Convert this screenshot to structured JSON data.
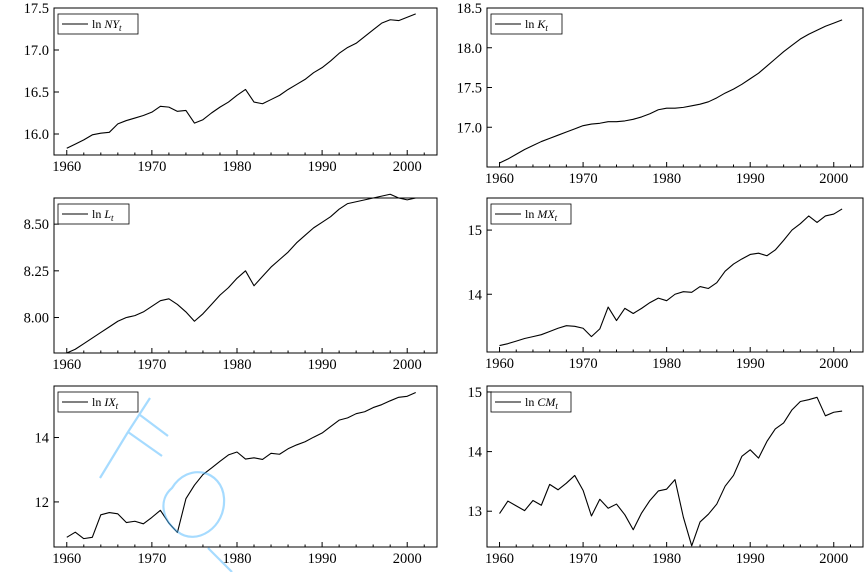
{
  "chart_data": [
    {
      "type": "line",
      "legend_prefix": "ln",
      "legend_var": "NY",
      "legend_sub": "t",
      "legend_position": "top-left",
      "grid": false,
      "x_ticks": [
        "1960",
        "1970",
        "1980",
        "1990",
        "2000"
      ],
      "y_ticks": [
        "16.0",
        "16.5",
        "17.0",
        "17.5"
      ],
      "xlim": [
        1958.5,
        2003.5
      ],
      "ylim": [
        15.75,
        17.5
      ],
      "x": [
        1960,
        1961,
        1962,
        1963,
        1964,
        1965,
        1966,
        1967,
        1968,
        1969,
        1970,
        1971,
        1972,
        1973,
        1974,
        1975,
        1976,
        1977,
        1978,
        1979,
        1980,
        1981,
        1982,
        1983,
        1984,
        1985,
        1986,
        1987,
        1988,
        1989,
        1990,
        1991,
        1992,
        1993,
        1994,
        1995,
        1996,
        1997,
        1998,
        1999,
        2000,
        2001
      ],
      "y": [
        15.83,
        15.88,
        15.93,
        15.99,
        16.01,
        16.02,
        16.12,
        16.16,
        16.19,
        16.22,
        16.26,
        16.33,
        16.32,
        16.27,
        16.28,
        16.13,
        16.17,
        16.25,
        16.32,
        16.38,
        16.46,
        16.53,
        16.38,
        16.36,
        16.41,
        16.46,
        16.53,
        16.59,
        16.65,
        16.73,
        16.79,
        16.87,
        16.96,
        17.03,
        17.08,
        17.16,
        17.24,
        17.32,
        17.36,
        17.35,
        17.39,
        17.43
      ]
    },
    {
      "type": "line",
      "legend_prefix": "ln",
      "legend_var": "K",
      "legend_sub": "t",
      "legend_position": "top-left",
      "grid": false,
      "x_ticks": [
        "1960",
        "1970",
        "1980",
        "1990",
        "2000"
      ],
      "y_ticks": [
        "17.0",
        "17.5",
        "18.0",
        "18.5"
      ],
      "xlim": [
        1958.5,
        2003.5
      ],
      "ylim": [
        16.5,
        18.5
      ],
      "x": [
        1960,
        1961,
        1962,
        1963,
        1964,
        1965,
        1966,
        1967,
        1968,
        1969,
        1970,
        1971,
        1972,
        1973,
        1974,
        1975,
        1976,
        1977,
        1978,
        1979,
        1980,
        1981,
        1982,
        1983,
        1984,
        1985,
        1986,
        1987,
        1988,
        1989,
        1990,
        1991,
        1992,
        1993,
        1994,
        1995,
        1996,
        1997,
        1998,
        1999,
        2000,
        2001
      ],
      "y": [
        16.55,
        16.6,
        16.66,
        16.72,
        16.77,
        16.82,
        16.86,
        16.9,
        16.94,
        16.98,
        17.02,
        17.04,
        17.05,
        17.07,
        17.07,
        17.08,
        17.1,
        17.13,
        17.17,
        17.22,
        17.24,
        17.24,
        17.25,
        17.27,
        17.29,
        17.32,
        17.37,
        17.43,
        17.48,
        17.54,
        17.61,
        17.68,
        17.77,
        17.86,
        17.95,
        18.03,
        18.11,
        18.17,
        18.22,
        18.27,
        18.31,
        18.35
      ]
    },
    {
      "type": "line",
      "legend_prefix": "ln",
      "legend_var": "L",
      "legend_sub": "t",
      "legend_position": "top-left",
      "grid": false,
      "x_ticks": [
        "1960",
        "1970",
        "1980",
        "1990",
        "2000"
      ],
      "y_ticks": [
        "8.00",
        "8.25",
        "8.50"
      ],
      "xlim": [
        1958.5,
        2003.5
      ],
      "ylim": [
        7.81,
        8.64
      ],
      "x": [
        1960,
        1961,
        1962,
        1963,
        1964,
        1965,
        1966,
        1967,
        1968,
        1969,
        1970,
        1971,
        1972,
        1973,
        1974,
        1975,
        1976,
        1977,
        1978,
        1979,
        1980,
        1981,
        1982,
        1983,
        1984,
        1985,
        1986,
        1987,
        1988,
        1989,
        1990,
        1991,
        1992,
        1993,
        1994,
        1995,
        1996,
        1997,
        1998,
        1999,
        2000,
        2001
      ],
      "y": [
        7.81,
        7.83,
        7.86,
        7.89,
        7.92,
        7.95,
        7.98,
        8.0,
        8.01,
        8.03,
        8.06,
        8.09,
        8.1,
        8.07,
        8.03,
        7.98,
        8.02,
        8.07,
        8.12,
        8.16,
        8.21,
        8.25,
        8.17,
        8.22,
        8.27,
        8.31,
        8.35,
        8.4,
        8.44,
        8.48,
        8.51,
        8.54,
        8.58,
        8.61,
        8.62,
        8.63,
        8.64,
        8.65,
        8.66,
        8.64,
        8.63,
        8.64
      ]
    },
    {
      "type": "line",
      "legend_prefix": "ln",
      "legend_var": "MX",
      "legend_sub": "t",
      "legend_position": "top-left",
      "grid": false,
      "x_ticks": [
        "1960",
        "1970",
        "1980",
        "1990",
        "2000"
      ],
      "y_ticks": [
        "14",
        "15"
      ],
      "xlim": [
        1958.5,
        2003.5
      ],
      "ylim": [
        13.1,
        15.5
      ],
      "x": [
        1960,
        1961,
        1962,
        1963,
        1964,
        1965,
        1966,
        1967,
        1968,
        1969,
        1970,
        1971,
        1972,
        1973,
        1974,
        1975,
        1976,
        1977,
        1978,
        1979,
        1980,
        1981,
        1982,
        1983,
        1984,
        1985,
        1986,
        1987,
        1988,
        1989,
        1990,
        1991,
        1992,
        1993,
        1994,
        1995,
        1996,
        1997,
        1998,
        1999,
        2000,
        2001
      ],
      "y": [
        13.2,
        13.23,
        13.27,
        13.31,
        13.34,
        13.37,
        13.42,
        13.47,
        13.51,
        13.5,
        13.47,
        13.34,
        13.46,
        13.8,
        13.59,
        13.78,
        13.7,
        13.78,
        13.87,
        13.94,
        13.9,
        14.0,
        14.04,
        14.03,
        14.12,
        14.09,
        14.18,
        14.36,
        14.47,
        14.55,
        14.62,
        14.64,
        14.6,
        14.69,
        14.84,
        15.0,
        15.1,
        15.22,
        15.12,
        15.22,
        15.25,
        15.33
      ]
    },
    {
      "type": "line",
      "legend_prefix": "ln",
      "legend_var": "IX",
      "legend_sub": "t",
      "legend_position": "top-left",
      "grid": false,
      "x_ticks": [
        "1960",
        "1970",
        "1980",
        "1990",
        "2000"
      ],
      "y_ticks": [
        "12",
        "14"
      ],
      "xlim": [
        1958.5,
        2003.5
      ],
      "ylim": [
        10.6,
        15.6
      ],
      "x": [
        1960,
        1961,
        1962,
        1963,
        1964,
        1965,
        1966,
        1967,
        1968,
        1969,
        1970,
        1971,
        1972,
        1973,
        1974,
        1975,
        1976,
        1977,
        1978,
        1979,
        1980,
        1981,
        1982,
        1983,
        1984,
        1985,
        1986,
        1987,
        1988,
        1989,
        1990,
        1991,
        1992,
        1993,
        1994,
        1995,
        1996,
        1997,
        1998,
        1999,
        2000,
        2001
      ],
      "y": [
        10.9,
        11.06,
        10.86,
        10.9,
        11.6,
        11.67,
        11.63,
        11.36,
        11.4,
        11.32,
        11.52,
        11.74,
        11.34,
        11.05,
        12.1,
        12.52,
        12.85,
        13.05,
        13.26,
        13.46,
        13.55,
        13.33,
        13.37,
        13.32,
        13.51,
        13.48,
        13.65,
        13.77,
        13.87,
        14.01,
        14.14,
        14.34,
        14.54,
        14.61,
        14.74,
        14.8,
        14.93,
        15.02,
        15.14,
        15.25,
        15.28,
        15.4
      ]
    },
    {
      "type": "line",
      "legend_prefix": "ln",
      "legend_var": "CM",
      "legend_sub": "t",
      "legend_position": "top-left",
      "grid": false,
      "x_ticks": [
        "1960",
        "1970",
        "1980",
        "1990",
        "2000"
      ],
      "y_ticks": [
        "13",
        "14",
        "15"
      ],
      "xlim": [
        1958.5,
        2003.5
      ],
      "ylim": [
        12.4,
        15.1
      ],
      "x": [
        1960,
        1961,
        1962,
        1963,
        1964,
        1965,
        1966,
        1967,
        1968,
        1969,
        1970,
        1971,
        1972,
        1973,
        1974,
        1975,
        1976,
        1977,
        1978,
        1979,
        1980,
        1981,
        1982,
        1983,
        1984,
        1985,
        1986,
        1987,
        1988,
        1989,
        1990,
        1991,
        1992,
        1993,
        1994,
        1995,
        1996,
        1997,
        1998,
        1999,
        2000,
        2001
      ],
      "y": [
        12.96,
        13.17,
        13.09,
        13.01,
        13.18,
        13.1,
        13.45,
        13.36,
        13.47,
        13.6,
        13.35,
        12.92,
        13.2,
        13.05,
        13.12,
        12.94,
        12.69,
        12.97,
        13.18,
        13.34,
        13.37,
        13.53,
        12.9,
        12.42,
        12.82,
        12.95,
        13.12,
        13.42,
        13.6,
        13.92,
        14.03,
        13.89,
        14.17,
        14.38,
        14.48,
        14.7,
        14.84,
        14.87,
        14.91,
        14.6,
        14.66,
        14.68
      ]
    }
  ]
}
